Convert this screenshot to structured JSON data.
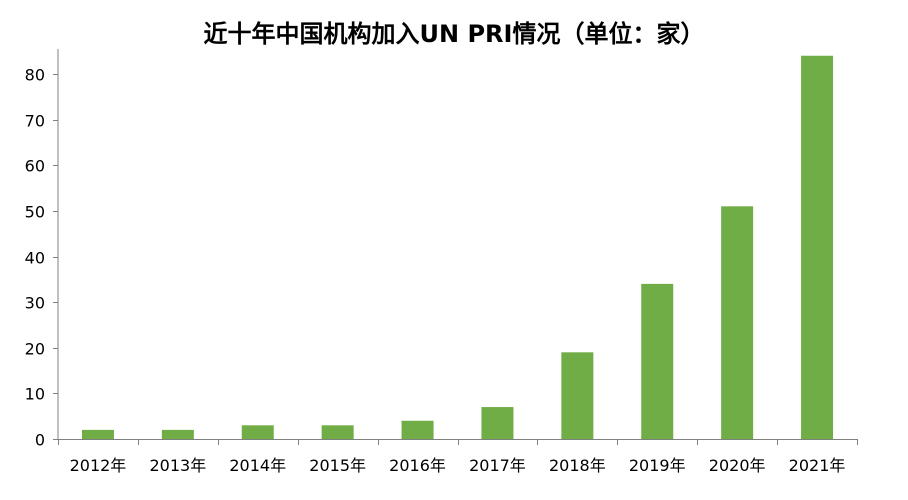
{
  "chart_data": {
    "type": "bar",
    "title": "近十年中国机构加入UN PRI情况（单位：家）",
    "categories": [
      "2012年",
      "2013年",
      "2014年",
      "2015年",
      "2016年",
      "2017年",
      "2018年",
      "2019年",
      "2020年",
      "2021年"
    ],
    "values": [
      2,
      2,
      3,
      3,
      4,
      7,
      19,
      34,
      51,
      84
    ],
    "ylim": [
      0,
      85
    ],
    "yticks": [
      0,
      10,
      20,
      30,
      40,
      50,
      60,
      70,
      80
    ],
    "grid": false,
    "bar_color": "#70AD47",
    "axis_color": "#808080"
  }
}
